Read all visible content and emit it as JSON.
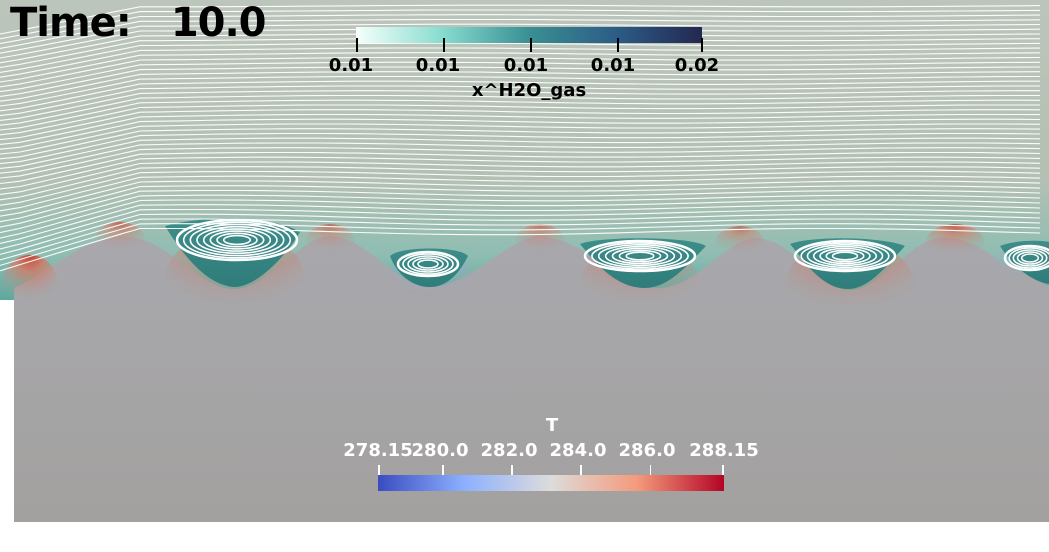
{
  "time": {
    "label": "Time:",
    "value": "10.0"
  },
  "top_colorbar": {
    "title": "x^H2O_gas",
    "ticks": [
      "0.01",
      "0.01",
      "0.01",
      "0.01",
      "0.02"
    ],
    "colors": [
      "#f6fffb",
      "#86dccf",
      "#3a8f93",
      "#2c5d86",
      "#232850"
    ]
  },
  "bottom_colorbar": {
    "title": "T",
    "ticks": [
      "278.15",
      "280.0",
      "282.0",
      "284.0",
      "286.0",
      "288.15"
    ],
    "tick_values": [
      278.15,
      280.0,
      282.0,
      284.0,
      286.0,
      288.15
    ],
    "range": [
      278.15,
      288.15
    ],
    "colors": [
      "#3a4cc0",
      "#8db0fe",
      "#dddcdb",
      "#f49a7b",
      "#b40426"
    ]
  },
  "colors": {
    "gas_region": "#b7c2b6",
    "gas_near_surface": "#5ea89e",
    "solid_region": "#a3a19f",
    "streamline": "#ffffff",
    "label_top": "#000000",
    "label_bottom": "#ffffff"
  }
}
